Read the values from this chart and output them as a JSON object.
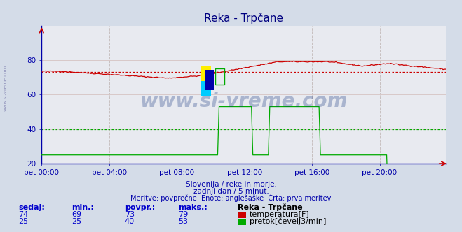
{
  "title": "Reka - Trpčane",
  "bg_color": "#d4dce8",
  "plot_bg_color": "#e8eaf0",
  "grid_color_v": "#c8c0c0",
  "grid_color_h": "#d8c8c8",
  "x_ticks_labels": [
    "pet 00:00",
    "pet 04:00",
    "pet 08:00",
    "pet 12:00",
    "pet 16:00",
    "pet 20:00"
  ],
  "x_ticks_pos": [
    0,
    48,
    96,
    144,
    192,
    240
  ],
  "x_max": 287,
  "ylim": [
    20,
    100
  ],
  "y_ticks": [
    20,
    40,
    60,
    80
  ],
  "y_labels": [
    "20",
    "40",
    "60",
    "80"
  ],
  "temp_color": "#cc0000",
  "flow_color": "#00aa00",
  "avg_temp": 73,
  "avg_flow": 40,
  "subtitle1": "Slovenija / reke in morje.",
  "subtitle2": "zadnji dan / 5 minut.",
  "subtitle3": "Meritve: povprečne  Enote: anglešaške  Črta: prva meritev",
  "table_header": [
    "sedaj:",
    "min.:",
    "povpr.:",
    "maks.:",
    "Reka - Trpčane"
  ],
  "table_row1": [
    "74",
    "69",
    "73",
    "79"
  ],
  "table_row2": [
    "25",
    "25",
    "40",
    "53"
  ],
  "label1": "temperatura[F]",
  "label2": "pretok[čevelj3/min]",
  "watermark": "www.si-vreme.com",
  "sidebar_text": "www.si-vreme.com"
}
